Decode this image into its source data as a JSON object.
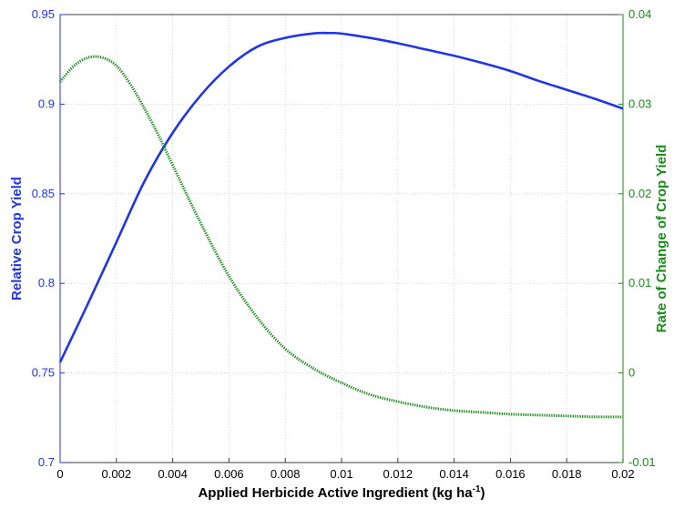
{
  "chart_data": {
    "type": "line",
    "title": "",
    "xlabel": "Applied Herbicide Active Ingredient (kg ha",
    "xlabel_superscript": "-1",
    "xlabel_suffix": ")",
    "ylabel_left": "Relative Crop Yield",
    "ylabel_right": "Rate of Change of Crop Yield",
    "xlim": [
      0,
      0.02
    ],
    "ylim_left": [
      0.7,
      0.95
    ],
    "ylim_right": [
      -0.01,
      0.04
    ],
    "x_ticks": [
      "0",
      "0.002",
      "0.004",
      "0.006",
      "0.008",
      "0.01",
      "0.012",
      "0.014",
      "0.016",
      "0.018",
      "0.02"
    ],
    "y_left_ticks": [
      "0.7",
      "0.75",
      "0.8",
      "0.85",
      "0.9",
      "0.95"
    ],
    "y_right_ticks": [
      "-0.01",
      "0",
      "0.01",
      "0.02",
      "0.03",
      "0.04"
    ],
    "grid": true,
    "colors": {
      "left": "#1f35e6",
      "right": "#1a8c1a"
    },
    "series": [
      {
        "axis": "left",
        "style": "solid",
        "x": [
          0,
          0.001,
          0.002,
          0.003,
          0.004,
          0.005,
          0.006,
          0.007,
          0.008,
          0.009,
          0.0095,
          0.01,
          0.011,
          0.012,
          0.013,
          0.014,
          0.015,
          0.016,
          0.017,
          0.018,
          0.019,
          0.02
        ],
        "values": [
          0.756,
          0.789,
          0.823,
          0.857,
          0.884,
          0.905,
          0.921,
          0.932,
          0.937,
          0.9395,
          0.9397,
          0.9394,
          0.937,
          0.934,
          0.9305,
          0.927,
          0.923,
          0.9185,
          0.913,
          0.908,
          0.903,
          0.8975
        ]
      },
      {
        "axis": "right",
        "style": "dotted",
        "x": [
          0,
          0.0005,
          0.001,
          0.0015,
          0.002,
          0.0025,
          0.003,
          0.0035,
          0.004,
          0.005,
          0.006,
          0.007,
          0.008,
          0.009,
          0.01,
          0.011,
          0.012,
          0.013,
          0.014,
          0.015,
          0.016,
          0.017,
          0.018,
          0.019,
          0.02
        ],
        "values": [
          0.0325,
          0.0343,
          0.0352,
          0.0352,
          0.0343,
          0.0322,
          0.0295,
          0.0265,
          0.0232,
          0.0167,
          0.0108,
          0.0062,
          0.0027,
          0.0005,
          -0.0011,
          -0.0024,
          -0.0032,
          -0.0038,
          -0.0042,
          -0.0044,
          -0.0046,
          -0.0047,
          -0.0048,
          -0.0049,
          -0.0049
        ]
      }
    ]
  }
}
